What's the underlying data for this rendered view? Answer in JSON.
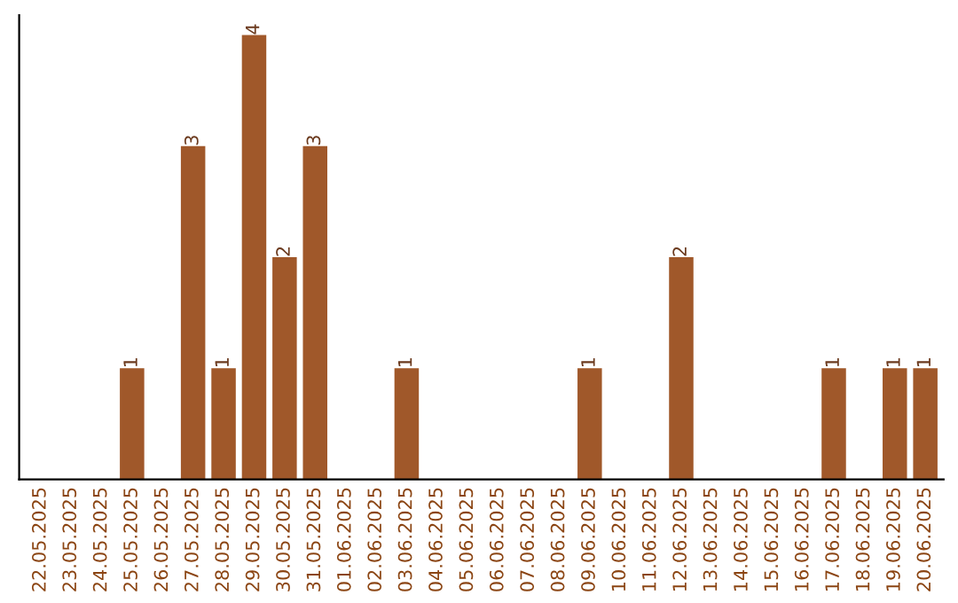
{
  "chart_data": {
    "type": "bar",
    "categories": [
      "22.05.2025",
      "23.05.2025",
      "24.05.2025",
      "25.05.2025",
      "26.05.2025",
      "27.05.2025",
      "28.05.2025",
      "29.05.2025",
      "30.05.2025",
      "31.05.2025",
      "01.06.2025",
      "02.06.2025",
      "03.06.2025",
      "04.06.2025",
      "05.06.2025",
      "06.06.2025",
      "07.06.2025",
      "08.06.2025",
      "09.06.2025",
      "10.06.2025",
      "11.06.2025",
      "12.06.2025",
      "13.06.2025",
      "14.06.2025",
      "15.06.2025",
      "16.06.2025",
      "17.06.2025",
      "18.06.2025",
      "19.06.2025",
      "20.06.2025"
    ],
    "values": [
      0,
      0,
      0,
      1,
      0,
      3,
      1,
      4,
      2,
      3,
      0,
      0,
      1,
      0,
      0,
      0,
      0,
      0,
      1,
      0,
      0,
      2,
      0,
      0,
      0,
      0,
      1,
      0,
      1,
      1
    ],
    "value_labels": [
      null,
      null,
      null,
      "1",
      null,
      "3",
      "1",
      "4",
      "2",
      "3",
      null,
      null,
      "1",
      null,
      null,
      null,
      null,
      null,
      "1",
      null,
      null,
      "2",
      null,
      null,
      null,
      null,
      "1",
      null,
      "1",
      "1"
    ],
    "color": "#a0582a",
    "grid": false,
    "legend": false
  }
}
